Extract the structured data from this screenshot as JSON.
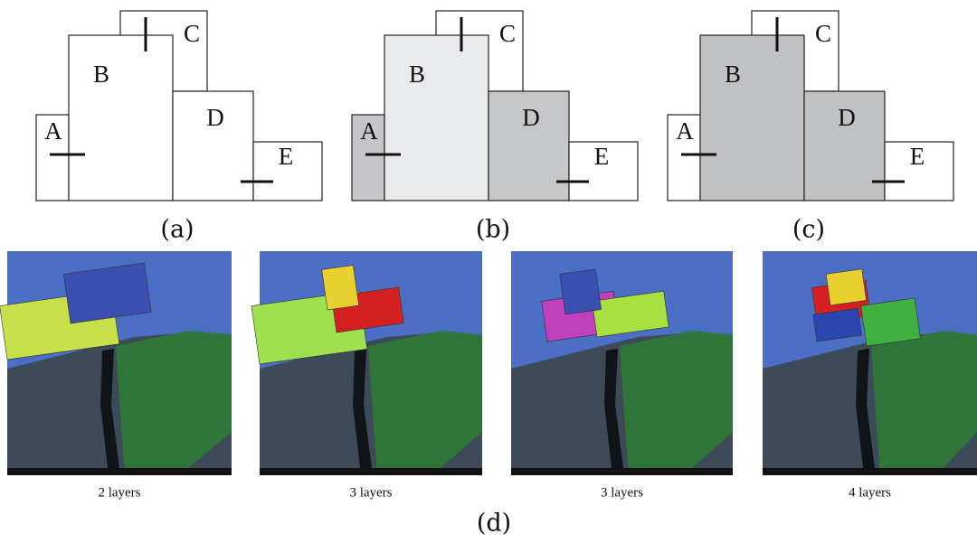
{
  "panels": [
    {
      "caption": "(a)",
      "boxes": [
        {
          "label": "A"
        },
        {
          "label": "B"
        },
        {
          "label": "C"
        },
        {
          "label": "D"
        },
        {
          "label": "E"
        }
      ]
    },
    {
      "caption": "(b)",
      "boxes": [
        {
          "label": "A"
        },
        {
          "label": "B"
        },
        {
          "label": "C"
        },
        {
          "label": "D"
        },
        {
          "label": "E"
        }
      ]
    },
    {
      "caption": "(c)",
      "boxes": [
        {
          "label": "A"
        },
        {
          "label": "B"
        },
        {
          "label": "C"
        },
        {
          "label": "D"
        },
        {
          "label": "E"
        }
      ]
    }
  ],
  "renders": [
    {
      "caption": "2 layers"
    },
    {
      "caption": "3 layers"
    },
    {
      "caption": "3 layers"
    },
    {
      "caption": "4 layers"
    }
  ],
  "renders_caption": "(d)"
}
